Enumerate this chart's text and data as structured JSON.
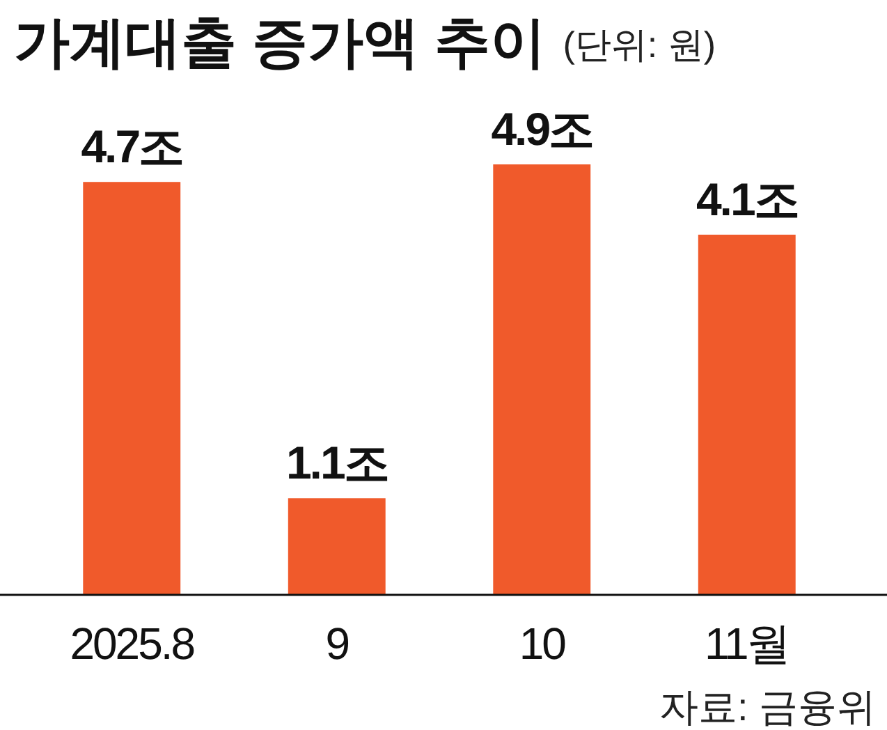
{
  "chart_data": {
    "type": "bar",
    "title": "가계대출 증가액 추이",
    "subtitle": "(단위: 원)",
    "categories": [
      "2025.8",
      "9",
      "10",
      "11월"
    ],
    "values": [
      4.7,
      1.1,
      4.9,
      4.1
    ],
    "value_labels": [
      "4.7조",
      "1.1조",
      "4.9조",
      "4.1조"
    ],
    "color": "#f05a2b",
    "annotations": [
      "자료: 금융위"
    ]
  }
}
